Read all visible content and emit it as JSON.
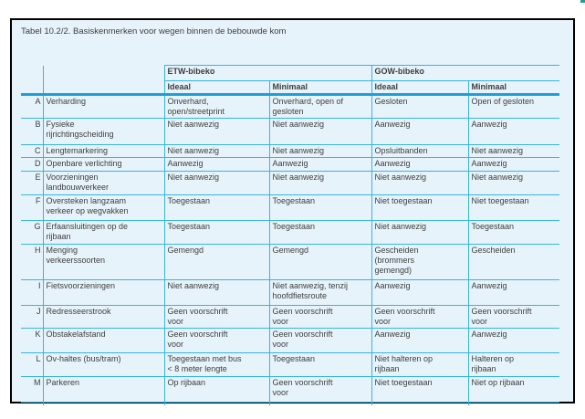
{
  "caption": "Tabel 10.2/2. Basiskenmerken voor wegen binnen de bebouwde kom",
  "table": {
    "column_groups": [
      {
        "label": "ETW-bibeko"
      },
      {
        "label": "GOW-bibeko"
      }
    ],
    "sub_headers": [
      "Ideaal",
      "Minimaal",
      "Ideaal",
      "Minimaal"
    ],
    "rows": [
      {
        "letter": "A",
        "name": "Verharding",
        "values": [
          "Onverhard,\nopen/streetprint",
          "Onverhard, open of\ngesloten",
          "Gesloten",
          "Open of gesloten"
        ]
      },
      {
        "letter": "B",
        "name": "Fysieke\nrijrichtingscheiding",
        "values": [
          "Niet aanwezig",
          "Niet aanwezig",
          "Aanwezig",
          "Aanwezig"
        ]
      },
      {
        "letter": "C",
        "name": "Lengtemarkering",
        "values": [
          "Niet aanwezig",
          "Niet aanwezig",
          "Opsluitbanden",
          "Niet aanwezig"
        ]
      },
      {
        "letter": "D",
        "name": "Openbare verlichting",
        "values": [
          "Aanwezig",
          "Aanwezig",
          "Aanwezig",
          "Aanwezig"
        ]
      },
      {
        "letter": "E",
        "name": "Voorzieningen\nlandbouwverkeer",
        "values": [
          "Niet aanwezig",
          "Niet aanwezig",
          "Niet aanwezig",
          "Niet aanwezig"
        ]
      },
      {
        "letter": "F",
        "name": "Oversteken langzaam\nverkeer op wegvakken",
        "values": [
          "Toegestaan",
          "Toegestaan",
          "Niet toegestaan",
          "Niet toegestaan"
        ]
      },
      {
        "letter": "G",
        "name": "Erfaansluitingen op de\nrijbaan",
        "values": [
          "Toegestaan",
          "Toegestaan",
          "Niet aanwezig",
          "Toegestaan"
        ]
      },
      {
        "letter": "H",
        "name": "Menging\nverkeerssoorten",
        "values": [
          "Gemengd",
          "Gemengd",
          "Gescheiden\n(brommers\ngemengd)",
          "Gescheiden"
        ]
      },
      {
        "letter": "I",
        "name": "Fietsvoorzieningen",
        "values": [
          "Niet aanwezig",
          "Niet aanwezig, tenzij\nhoofdfietsroute",
          "Aanwezig",
          "Aanwezig"
        ]
      },
      {
        "letter": "J",
        "name": "Redresseerstrook",
        "values": [
          "Geen voorschrift\nvoor",
          "Geen voorschrift\nvoor",
          "Geen voorschrift\nvoor",
          "Geen voorschrift\nvoor"
        ]
      },
      {
        "letter": "K",
        "name": "Obstakelafstand",
        "values": [
          "Geen voorschrift\nvoor",
          "Geen voorschrift\nvoor",
          "Aanwezig",
          "Aanwezig"
        ]
      },
      {
        "letter": "L",
        "name": "Ov-haltes (bus/tram)",
        "values": [
          "Toegestaan met bus\n< 8 meter lengte",
          "Toegestaan",
          "Niet halteren op\nrijbaan",
          "Halteren op\nrijbaan"
        ]
      },
      {
        "letter": "M",
        "name": "Parkeren",
        "values": [
          "Op rijbaan",
          "Geen voorschrift\nvoor",
          "Niet toegestaan",
          "Niet op rijbaan"
        ]
      }
    ]
  },
  "colors": {
    "page_background": "#ffffff",
    "box_background": "#e7f3fa",
    "box_border": "#000000",
    "grid_line": "#35b4e6",
    "header_rule": "#1d9fda",
    "text": "#3e3e3e",
    "corner_mark": "#1aa28e"
  }
}
